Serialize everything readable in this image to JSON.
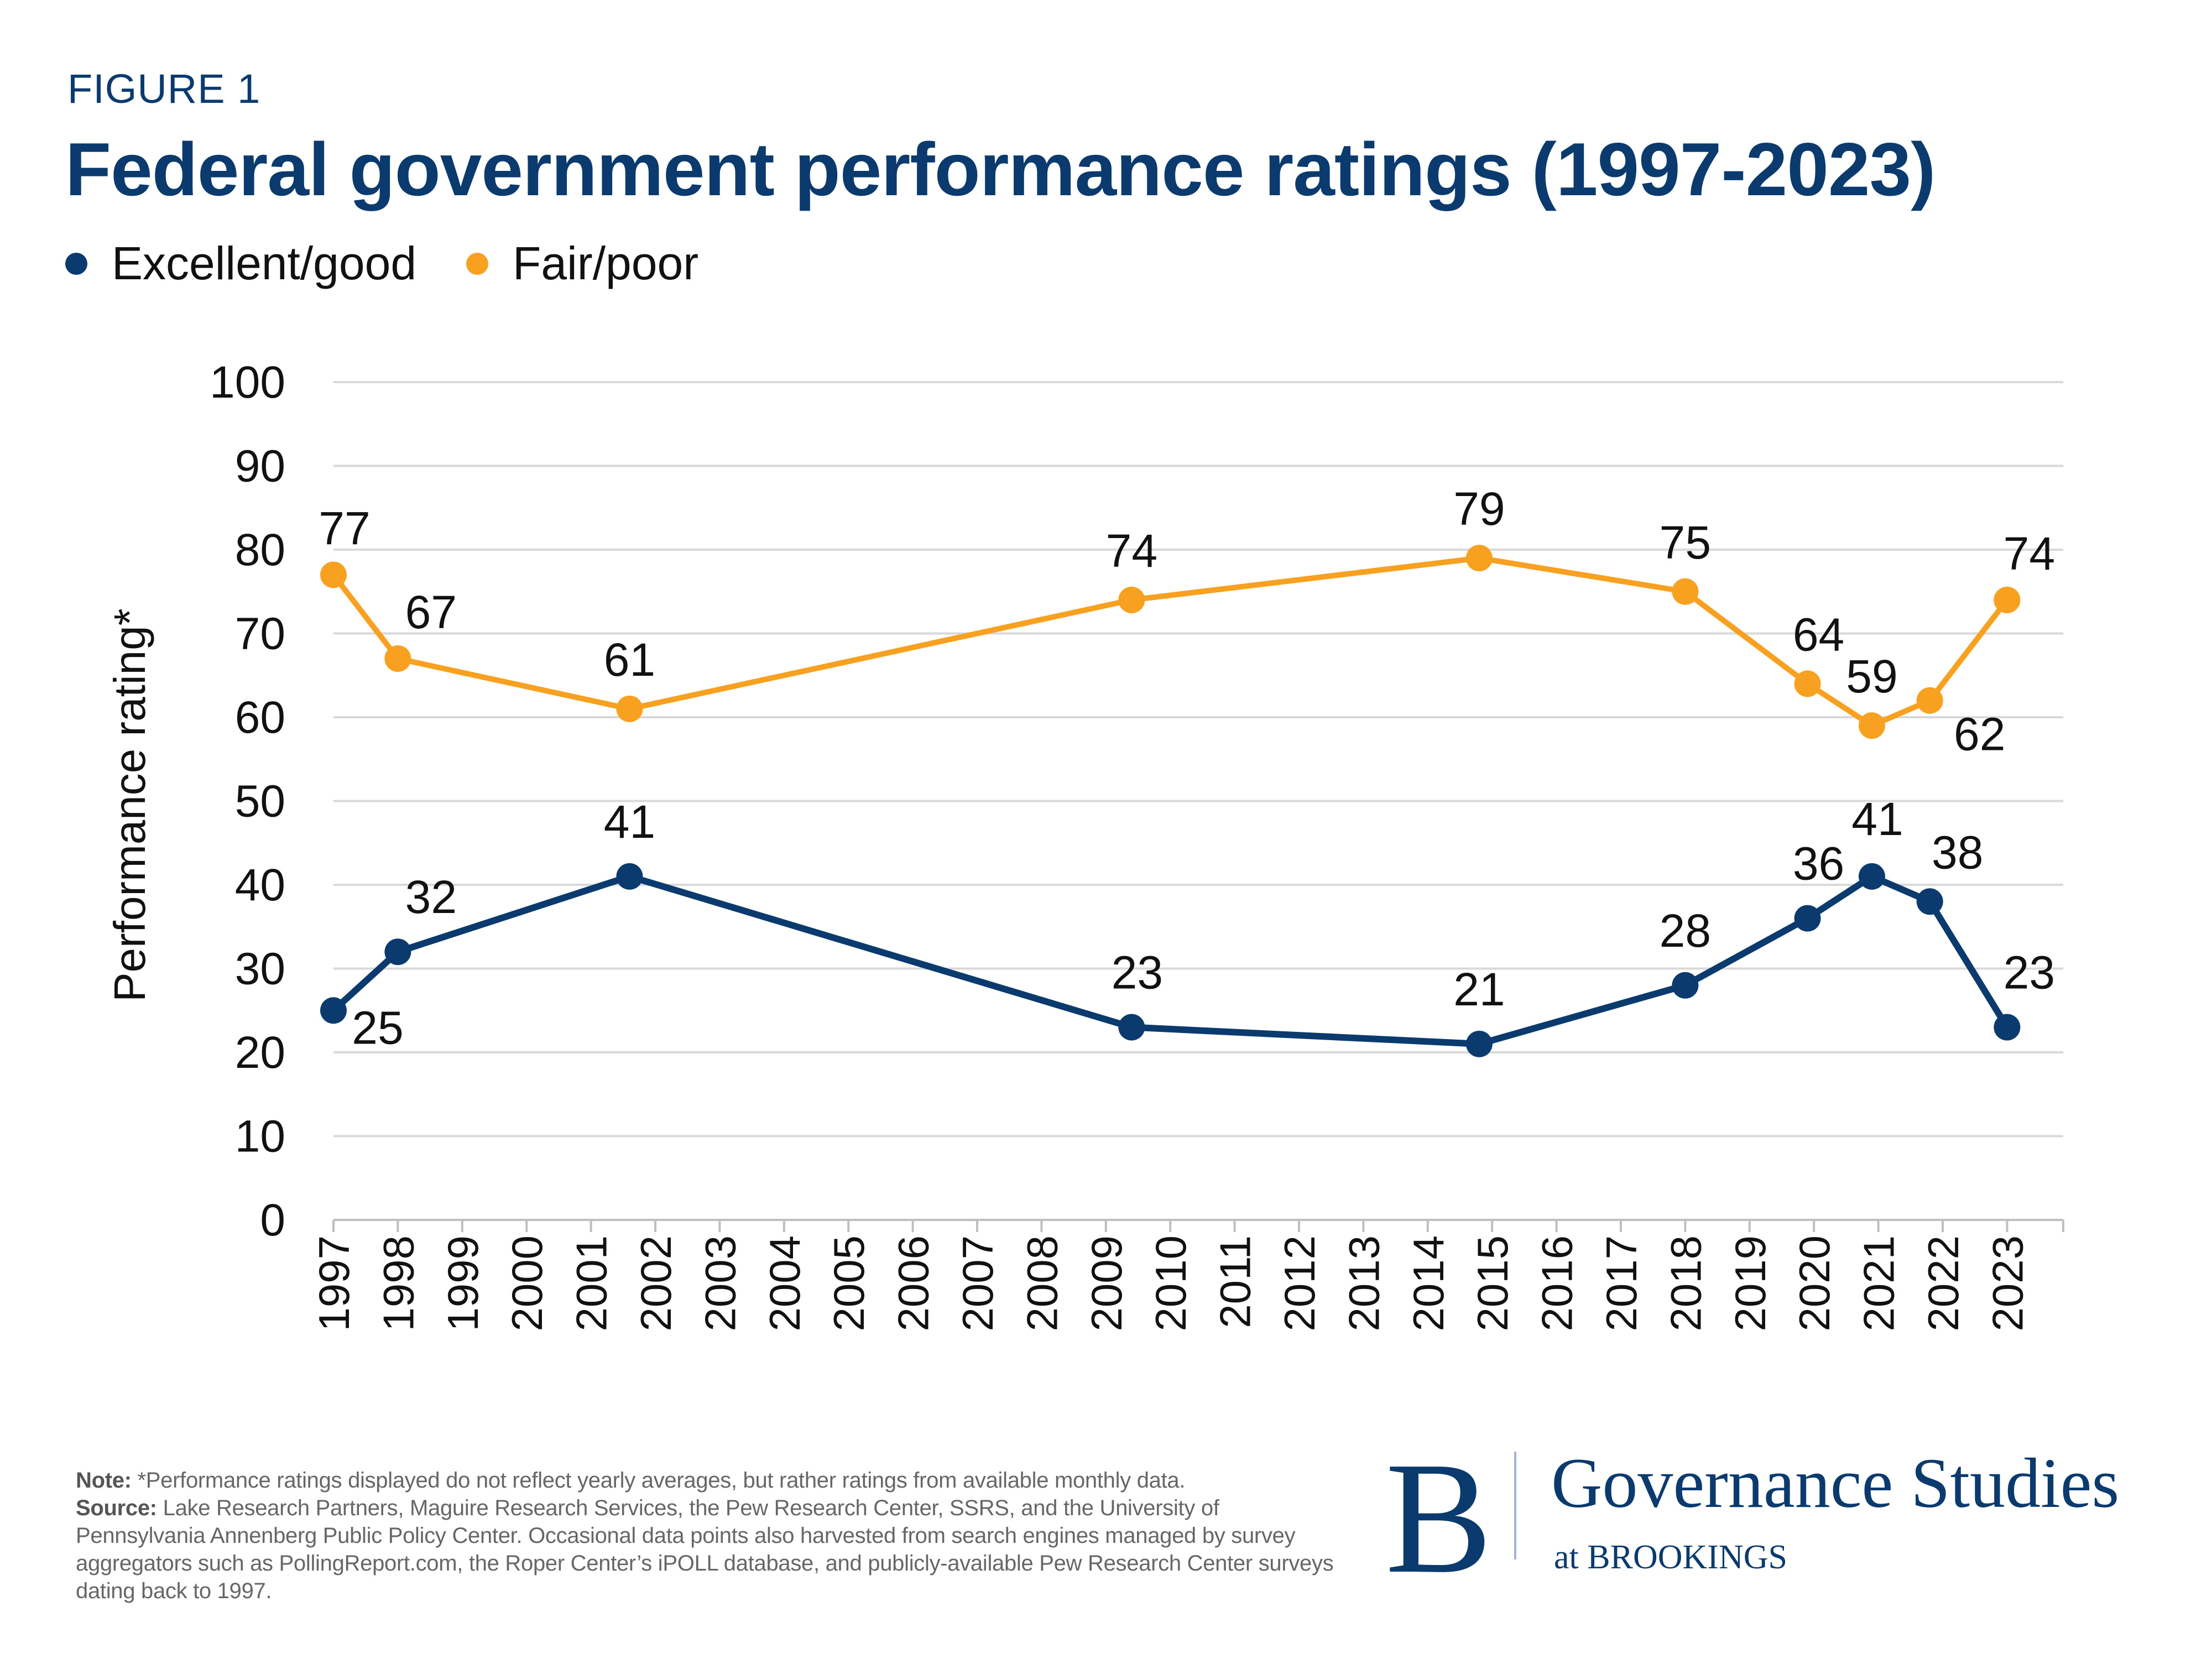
{
  "header": {
    "figure_label": "FIGURE 1",
    "title": "Federal government performance ratings (1997-2023)"
  },
  "colors": {
    "excellent_good": "#0a3a6e",
    "fair_poor": "#f8a01f",
    "title": "#0a3a6e",
    "grid": "#d9d9d9"
  },
  "chart_data": {
    "type": "line",
    "title": "Federal government performance ratings (1997-2023)",
    "ylabel": "Performance rating*",
    "xlabel": "",
    "ylim": [
      0,
      100
    ],
    "yticks": [
      "0",
      "10",
      "20",
      "30",
      "40",
      "50",
      "60",
      "70",
      "80",
      "90",
      "100"
    ],
    "xlim": [
      1997,
      2023.9
    ],
    "xticks": [
      "1997",
      "1998",
      "1999",
      "2000",
      "2001",
      "2002",
      "2003",
      "2004",
      "2005",
      "2006",
      "2007",
      "2008",
      "2009",
      "2010",
      "2011",
      "2012",
      "2013",
      "2014",
      "2015",
      "2016",
      "2017",
      "2018",
      "2019",
      "2020",
      "2021",
      "2022",
      "2023"
    ],
    "grid": true,
    "legend_position": "top-left",
    "x": [
      1997.0,
      1998.0,
      2001.6,
      2009.4,
      2014.8,
      2018.0,
      2019.9,
      2020.9,
      2021.8,
      2023.0
    ],
    "series": [
      {
        "name": "Excellent/good",
        "color": "#0a3a6e",
        "values": [
          25,
          32,
          41,
          23,
          21,
          28,
          36,
          41,
          38,
          23
        ]
      },
      {
        "name": "Fair/poor",
        "color": "#f8a01f",
        "values": [
          77,
          67,
          61,
          74,
          79,
          75,
          64,
          59,
          62,
          74
        ]
      }
    ]
  },
  "notes": {
    "note_label": "Note:",
    "note_text": " *Performance ratings displayed do not reflect yearly averages, but rather ratings from available monthly data.",
    "source_label": "Source:",
    "source_text": " Lake Research Partners, Maguire Research Services, the Pew Research Center, SSRS, and the University of Pennsylvania Annenberg Public Policy Center. Occasional data points also harvested from search engines managed by survey aggregators such as PollingReport.com, the Roper Center’s iPOLL database, and publicly-available Pew Research Center surveys dating back to 1997."
  },
  "logo": {
    "letter": "B",
    "name": "Governance Studies",
    "sub": "at BROOKINGS"
  }
}
